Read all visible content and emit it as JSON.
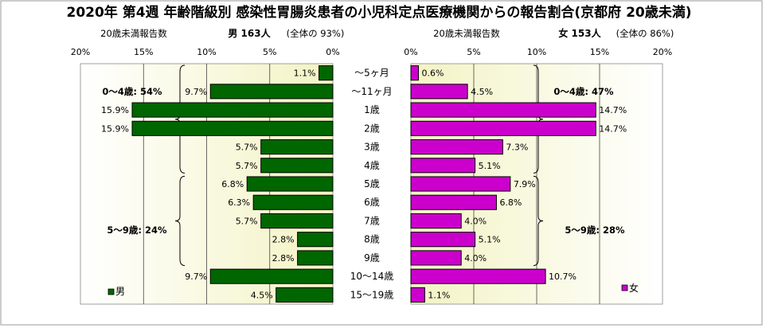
{
  "chart_data": {
    "type": "bar",
    "title": "2020年 第4週 年齢階級別 感染性胃腸炎患者の小児科定点医療機関からの報告割合(京都府 20歳未満)",
    "categories": [
      "～5ヶ月",
      "～11ヶ月",
      "1歳",
      "2歳",
      "3歳",
      "4歳",
      "5歳",
      "6歳",
      "7歳",
      "8歳",
      "9歳",
      "10～14歳",
      "15～19歳"
    ],
    "unit": "%",
    "xlim": [
      0,
      20
    ],
    "ticks": [
      0,
      5,
      10,
      15,
      20
    ],
    "grid": true,
    "series": [
      {
        "name": "男",
        "side": "left",
        "color": "#006600",
        "header_prefix": "20歳未満報告数",
        "header_main": "男 163人",
        "header_suffix": "(全体の 93%)",
        "values": [
          1.1,
          9.7,
          15.9,
          15.9,
          5.7,
          5.7,
          6.8,
          6.3,
          5.7,
          2.8,
          2.8,
          9.7,
          4.5
        ],
        "brace_labels": [
          "0～4歳: 54%",
          "5～9歳: 24%"
        ]
      },
      {
        "name": "女",
        "side": "right",
        "color": "#cc00cc",
        "header_prefix": "20歳未満報告数",
        "header_main": "女 153人",
        "header_suffix": "(全体の 86%)",
        "values": [
          0.6,
          4.5,
          14.7,
          14.7,
          7.3,
          5.1,
          7.9,
          6.8,
          4.0,
          5.1,
          4.0,
          10.7,
          1.1
        ],
        "brace_labels": [
          "0～4歳: 47%",
          "5～9歳: 28%"
        ]
      }
    ],
    "legend": {
      "placement": "bottom",
      "left_label": "男",
      "right_label": "女"
    }
  }
}
